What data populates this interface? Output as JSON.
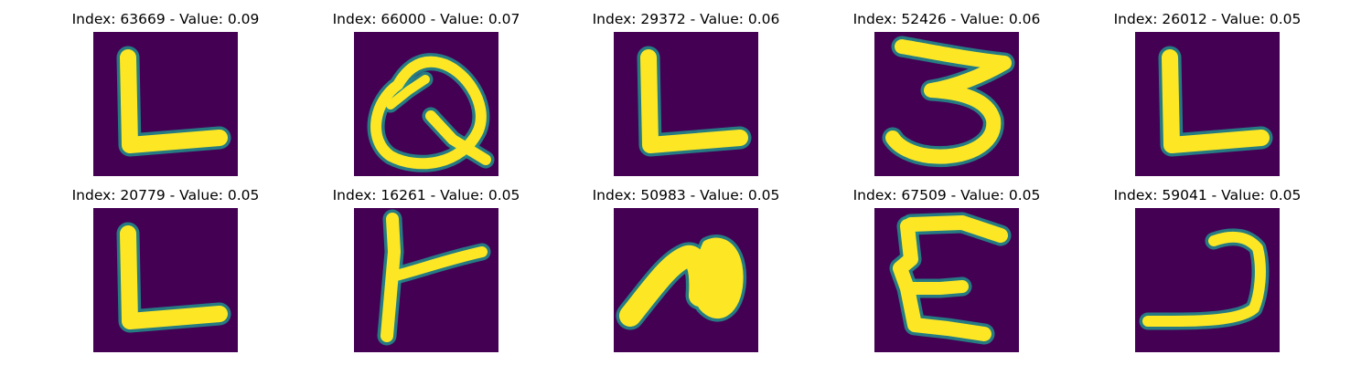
{
  "figure": {
    "colormap": [
      "#440154",
      "#3b528b",
      "#21918c",
      "#5ec962",
      "#fde725"
    ],
    "background_color": "#440154",
    "foreground_color": "#fde725",
    "edge_color": "#21918c",
    "panels": [
      {
        "title": "Index: 63669 - Value: 0.09",
        "glyph": "L-shape",
        "index": 63669,
        "value": 0.09
      },
      {
        "title": "Index: 66000 - Value: 0.07",
        "glyph": "Q-shape",
        "index": 66000,
        "value": 0.07
      },
      {
        "title": "Index: 29372 - Value: 0.06",
        "glyph": "L-shape",
        "index": 29372,
        "value": 0.06
      },
      {
        "title": "Index: 52426 - Value: 0.06",
        "glyph": "3-shape",
        "index": 52426,
        "value": 0.06
      },
      {
        "title": "Index: 26012 - Value: 0.05",
        "glyph": "L-shape",
        "index": 26012,
        "value": 0.05
      },
      {
        "title": "Index: 20779 - Value: 0.05",
        "glyph": "L-shape",
        "index": 20779,
        "value": 0.05
      },
      {
        "title": "Index: 16261 - Value: 0.05",
        "glyph": "T-shape",
        "index": 16261,
        "value": 0.05
      },
      {
        "title": "Index: 50983 - Value: 0.05",
        "glyph": "n-shape",
        "index": 50983,
        "value": 0.05
      },
      {
        "title": "Index: 67509 - Value: 0.05",
        "glyph": "E-shape",
        "index": 67509,
        "value": 0.05
      },
      {
        "title": "Index: 59041 - Value: 0.05",
        "glyph": "J-shape",
        "index": 59041,
        "value": 0.05
      }
    ]
  }
}
